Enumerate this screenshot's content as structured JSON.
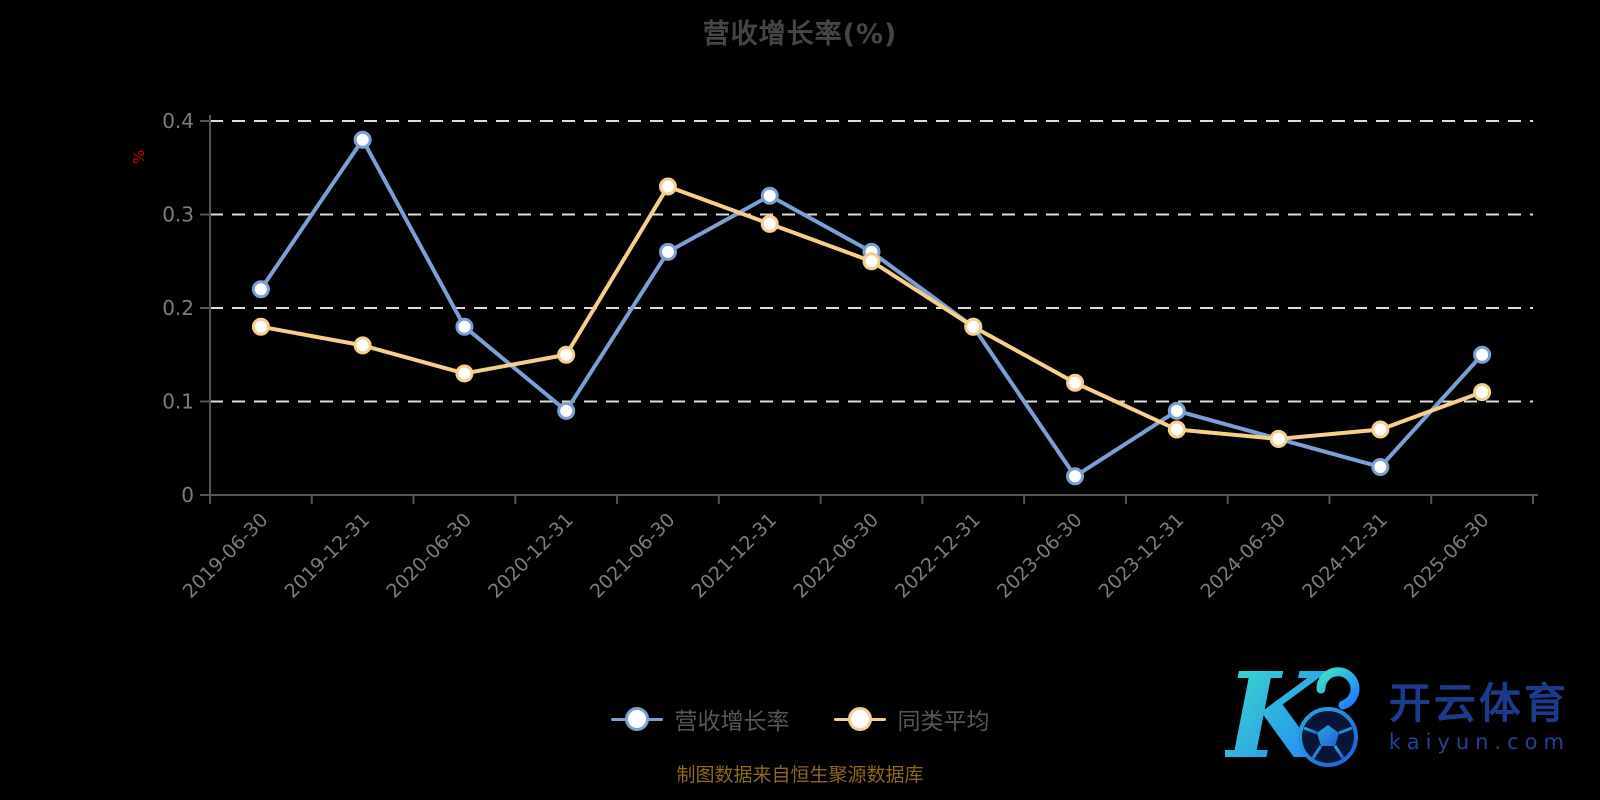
{
  "title": "营收增长率(%)",
  "y_axis_unit": "%",
  "caption": "制图数据来自恒生聚源数据库",
  "watermark": {
    "brand": "开云体育",
    "domain": "kaiyun.com"
  },
  "colors": {
    "background": "#000000",
    "title_text": "#454545",
    "axis_line": "#555555",
    "axis_label": "#7c7c7c",
    "gridline": "#dddddd",
    "unit_label": "#d40000",
    "caption_text": "#8c691e",
    "legend_text": "#565656",
    "series_revenue": "#7aa0d5",
    "series_peer": "#f6cf8a",
    "watermark_navy": "#1b3c8c"
  },
  "chart_data": {
    "type": "line",
    "title": "营收增长率(%)",
    "ylabel": "%",
    "xlabel": "",
    "ylim": [
      0,
      0.4
    ],
    "yticks": [
      0,
      0.1,
      0.2,
      0.3,
      0.4
    ],
    "grid": "horizontal-dashed",
    "legend_position": "bottom",
    "categories": [
      "2019-06-30",
      "2019-12-31",
      "2020-06-30",
      "2020-12-31",
      "2021-06-30",
      "2021-12-31",
      "2022-06-30",
      "2022-12-31",
      "2023-06-30",
      "2023-12-31",
      "2024-06-30",
      "2024-12-31",
      "2025-06-30"
    ],
    "series": [
      {
        "name": "营收增长率",
        "color": "#7aa0d5",
        "values": [
          0.22,
          0.38,
          0.18,
          0.09,
          0.26,
          0.32,
          0.26,
          0.18,
          0.02,
          0.09,
          0.06,
          0.03,
          0.15
        ]
      },
      {
        "name": "同类平均",
        "color": "#f6cf8a",
        "values": [
          0.18,
          0.16,
          0.13,
          0.15,
          0.33,
          0.29,
          0.25,
          0.18,
          0.12,
          0.07,
          0.06,
          0.07,
          0.11
        ]
      }
    ]
  }
}
